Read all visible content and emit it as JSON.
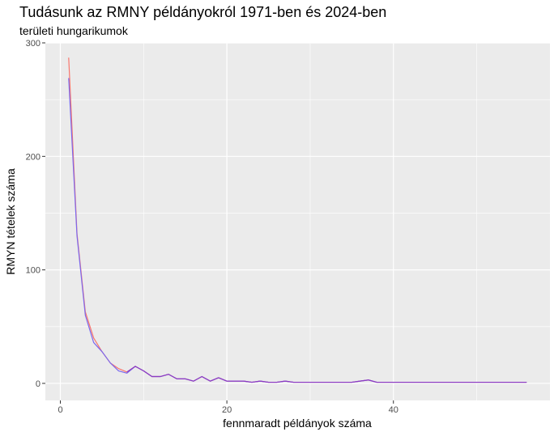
{
  "chart_data": {
    "type": "line",
    "title": "Tudásunk az RMNY példányokról 1971-ben és 2024-ben",
    "subtitle": "területi hungarikumok",
    "xlabel": "fennmaradt példányok száma",
    "ylabel": "RMYN tételek száma",
    "xlim": [
      -1.8,
      58.8
    ],
    "ylim": [
      -15,
      300
    ],
    "xticks": [
      0,
      20,
      40
    ],
    "yticks": [
      0,
      100,
      200,
      300
    ],
    "grid": true,
    "legend": "none",
    "background": "#EBEBEB",
    "series": [
      {
        "color": "#F8766D",
        "x": [
          1,
          2,
          3,
          4,
          5,
          6,
          7,
          8,
          9,
          10,
          11,
          12,
          13,
          14,
          15,
          16,
          17,
          18,
          19,
          20,
          21,
          22,
          23,
          24,
          25,
          26,
          27,
          28,
          29,
          30,
          31,
          32,
          33,
          34,
          35,
          36,
          37,
          38,
          39,
          40,
          41,
          42,
          43,
          44,
          45,
          46,
          47,
          48,
          49,
          50,
          51,
          52,
          53,
          54,
          55,
          56
        ],
        "values": [
          287,
          132,
          63,
          40,
          28,
          18,
          13,
          10,
          15,
          11,
          6,
          6,
          8,
          4,
          4,
          2,
          6,
          2,
          5,
          2,
          2,
          2,
          1,
          2,
          1,
          1,
          2,
          1,
          1,
          1,
          1,
          1,
          1,
          1,
          1,
          2,
          3,
          1,
          1,
          1,
          1,
          1,
          1,
          1,
          1,
          1,
          1,
          1,
          1,
          1,
          1,
          1,
          1,
          1,
          1,
          1
        ]
      },
      {
        "color": "#7B68EE",
        "x": [
          1,
          2,
          3,
          4,
          5,
          6,
          7,
          8,
          9,
          10,
          11,
          12,
          13,
          14,
          15,
          16,
          17,
          18,
          19,
          20,
          21,
          22,
          23,
          24,
          25,
          26,
          27,
          28,
          29,
          30,
          31,
          32,
          33,
          34,
          35,
          36,
          37,
          38,
          39,
          40,
          41,
          42,
          43,
          44,
          45,
          46,
          47,
          48,
          49,
          50,
          51,
          52,
          53,
          54,
          55,
          56
        ],
        "values": [
          269,
          130,
          60,
          36,
          28,
          18,
          11,
          9,
          15,
          11,
          6,
          6,
          8,
          4,
          4,
          2,
          6,
          2,
          5,
          2,
          2,
          2,
          1,
          2,
          1,
          1,
          2,
          1,
          1,
          1,
          1,
          1,
          1,
          1,
          1,
          2,
          3,
          1,
          1,
          1,
          1,
          1,
          1,
          1,
          1,
          1,
          1,
          1,
          1,
          1,
          1,
          1,
          1,
          1,
          1,
          1
        ]
      },
      {
        "color": "#8B3CC4",
        "x": [
          8,
          9,
          10,
          11,
          12,
          13,
          14,
          15,
          16,
          17,
          18,
          19,
          20,
          21,
          22,
          23,
          24,
          25,
          26,
          27,
          28,
          29,
          30,
          31,
          32,
          33,
          34,
          35,
          36,
          37,
          38,
          39,
          40,
          41,
          42,
          43,
          44,
          45,
          46,
          47,
          48,
          49,
          50,
          51,
          52,
          53,
          54,
          55,
          56
        ],
        "values": [
          10,
          15,
          11,
          6,
          6,
          8,
          4,
          4,
          2,
          6,
          2,
          5,
          2,
          2,
          2,
          1,
          2,
          1,
          1,
          2,
          1,
          1,
          1,
          1,
          1,
          1,
          1,
          1,
          2,
          3,
          1,
          1,
          1,
          1,
          1,
          1,
          1,
          1,
          1,
          1,
          1,
          1,
          1,
          1,
          1,
          1,
          1,
          1,
          1
        ]
      }
    ]
  }
}
